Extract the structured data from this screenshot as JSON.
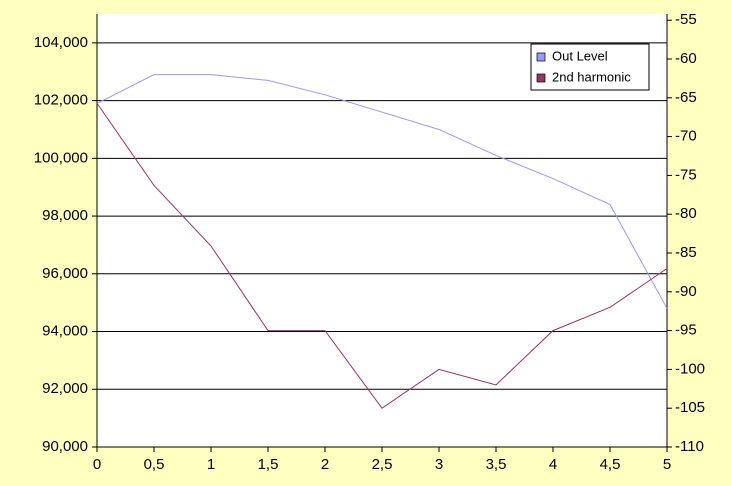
{
  "chart_data": {
    "type": "line",
    "x": [
      0,
      0.5,
      1,
      1.5,
      2,
      2.5,
      3,
      3.5,
      4,
      4.5,
      5
    ],
    "xlim": [
      0,
      5
    ],
    "xticks": [
      0,
      {
        "value": 0.5,
        "label": "0,5"
      },
      1,
      {
        "value": 1.5,
        "label": "1,5"
      },
      2,
      {
        "value": 2.5,
        "label": "2,5"
      },
      3,
      {
        "value": 3.5,
        "label": "3,5"
      },
      4,
      {
        "value": 4.5,
        "label": "4,5"
      },
      5
    ],
    "ylim": [
      90000,
      105000
    ],
    "yticks": [
      {
        "value": 90000,
        "label": "90,000"
      },
      {
        "value": 92000,
        "label": "92,000"
      },
      {
        "value": 94000,
        "label": "94,000"
      },
      {
        "value": 96000,
        "label": "96,000"
      },
      {
        "value": 98000,
        "label": "98,000"
      },
      {
        "value": 100000,
        "label": "100,000"
      },
      {
        "value": 102000,
        "label": "102,000"
      },
      {
        "value": 104000,
        "label": "104,000"
      }
    ],
    "y2lim": [
      -110,
      -54.2
    ],
    "y2ticks": [
      -110,
      -105,
      -100,
      -95,
      -90,
      -85,
      -80,
      -75,
      -70,
      -65,
      -60,
      -55
    ],
    "grid": true,
    "legend": "upper right",
    "series": [
      {
        "name": "Out Level",
        "color": "#9999ff",
        "values": [
          101900,
          102900,
          102900,
          102700,
          102200,
          101600,
          101000,
          100100,
          99300,
          98400,
          94800
        ]
      },
      {
        "name": "2nd harmonic",
        "color": "#993366",
        "axis": "y2",
        "values": [
          -65.7,
          -76.3,
          -84.1,
          -95,
          -95,
          -105,
          -100,
          -102,
          -95,
          -92,
          -87
        ]
      }
    ]
  }
}
